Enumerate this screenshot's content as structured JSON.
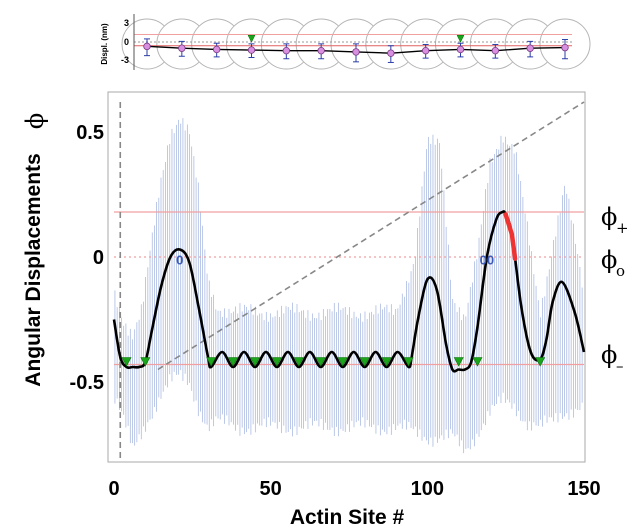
{
  "chart_data": [
    {
      "type": "line",
      "title": "",
      "xlabel": "Actin Site #",
      "ylabel": "Angular Displacements",
      "ylabel_symbol": "ϕ",
      "xlim": [
        0,
        150
      ],
      "ylim": [
        -0.82,
        0.66
      ],
      "x_ticks": [
        0,
        50,
        100,
        150
      ],
      "x_tick_labels": [
        "0",
        "50",
        "100",
        "150"
      ],
      "y_ticks": [
        0.5,
        0,
        -0.5
      ],
      "y_tick_labels": [
        "0.5",
        "0",
        "-0.5"
      ],
      "grid": false,
      "reference_lines": [
        {
          "label_symbol": "ϕ",
          "label_subscript": "+",
          "y": 0.18,
          "style": "solid",
          "color": "#f0a0a0"
        },
        {
          "label_symbol": "ϕ",
          "label_subscript": "o",
          "y": 0.0,
          "style": "dotted",
          "color": "#f0a0a0"
        },
        {
          "label_symbol": "ϕ",
          "label_subscript": "–",
          "y": -0.43,
          "style": "solid",
          "color": "#f0a0a0"
        }
      ],
      "series": [
        {
          "role": "mean angular displacement",
          "color": "#000000",
          "x": [
            0,
            2,
            4,
            6,
            8,
            10,
            12,
            15,
            18,
            21,
            24,
            27,
            30,
            31,
            34.5,
            38,
            41.5,
            45,
            48.5,
            52,
            55.5,
            59,
            62.5,
            66,
            69.5,
            73,
            76.5,
            80,
            83.5,
            87,
            90.5,
            94,
            95,
            97,
            100,
            103,
            106,
            108,
            110,
            112,
            114,
            116,
            119,
            122,
            124,
            125,
            127,
            130,
            133,
            136,
            138,
            140,
            143,
            147,
            150
          ],
          "y": [
            -0.25,
            -0.4,
            -0.44,
            -0.44,
            -0.44,
            -0.42,
            -0.3,
            -0.12,
            0.0,
            0.03,
            -0.02,
            -0.2,
            -0.4,
            -0.44,
            -0.38,
            -0.44,
            -0.38,
            -0.44,
            -0.38,
            -0.44,
            -0.38,
            -0.44,
            -0.38,
            -0.44,
            -0.38,
            -0.44,
            -0.38,
            -0.44,
            -0.38,
            -0.44,
            -0.38,
            -0.44,
            -0.4,
            -0.25,
            -0.09,
            -0.13,
            -0.35,
            -0.45,
            -0.45,
            -0.45,
            -0.42,
            -0.28,
            0.0,
            0.15,
            0.18,
            0.17,
            0.09,
            -0.2,
            -0.38,
            -0.41,
            -0.33,
            -0.18,
            -0.1,
            -0.22,
            -0.38
          ]
        },
        {
          "role": "fluctuation envelope (light blue vertical lines)",
          "color": "#8fa4d8",
          "x": [
            0,
            3,
            6,
            9,
            12,
            15,
            18,
            21,
            24,
            27,
            30,
            33,
            40,
            50,
            60,
            70,
            80,
            90,
            96,
            100,
            104,
            108,
            112,
            116,
            120,
            124,
            128,
            132,
            136,
            140,
            144,
            148,
            150
          ],
          "upper": [
            -0.15,
            -0.25,
            -0.3,
            -0.2,
            0.05,
            0.3,
            0.5,
            0.57,
            0.5,
            0.25,
            -0.1,
            -0.2,
            -0.22,
            -0.22,
            -0.22,
            -0.22,
            -0.22,
            -0.22,
            0.0,
            0.45,
            0.45,
            -0.15,
            -0.25,
            0.0,
            0.38,
            0.5,
            0.42,
            0.1,
            -0.22,
            0.05,
            0.28,
            0.0,
            -0.15
          ],
          "lower": [
            -0.55,
            -0.65,
            -0.78,
            -0.7,
            -0.62,
            -0.55,
            -0.5,
            -0.48,
            -0.5,
            -0.6,
            -0.68,
            -0.66,
            -0.68,
            -0.68,
            -0.68,
            -0.68,
            -0.68,
            -0.68,
            -0.7,
            -0.72,
            -0.72,
            -0.72,
            -0.78,
            -0.7,
            -0.62,
            -0.58,
            -0.6,
            -0.66,
            -0.68,
            -0.66,
            -0.62,
            -0.6,
            -0.6
          ]
        }
      ],
      "markers": [
        {
          "type": "green-triangle",
          "x": [
            4,
            10,
            31,
            38,
            45,
            52,
            59,
            66,
            73,
            80,
            87,
            94,
            110,
            116,
            136
          ],
          "y": -0.43
        }
      ],
      "highlight": {
        "color": "#ee3333",
        "x_from": 125,
        "x_to": 128
      },
      "annotations": [
        {
          "text": "0",
          "x": 21,
          "y": -0.03
        },
        {
          "text": "00",
          "x": 119,
          "y": -0.03
        }
      ],
      "dashed_guides": [
        {
          "x1": 2,
          "y1": 0.62,
          "x2": 2,
          "y2": -0.82
        },
        {
          "x1": 14,
          "y1": -0.45,
          "x2": 150,
          "y2": 0.62
        }
      ]
    },
    {
      "type": "line",
      "title": "",
      "ylabel": "Displ. (nm)",
      "ylim": [
        -3.6,
        3.6
      ],
      "y_ticks": [
        3,
        0,
        -3
      ],
      "y_tick_labels": [
        "3",
        "0",
        "-3"
      ],
      "grid": false,
      "sites": [
        1,
        2,
        3,
        4,
        5,
        6,
        7,
        8,
        9,
        10,
        11,
        12,
        13
      ],
      "values": [
        -0.7,
        -1.0,
        -1.2,
        -1.3,
        -1.4,
        -1.4,
        -1.6,
        -1.8,
        -1.4,
        -1.2,
        -1.4,
        -1.0,
        -0.9
      ],
      "error_high": [
        1.2,
        1.1,
        1.0,
        1.0,
        1.1,
        1.1,
        1.3,
        1.2,
        1.0,
        1.0,
        1.0,
        1.1,
        1.3
      ],
      "error_low": [
        1.5,
        1.3,
        1.2,
        1.2,
        1.3,
        1.3,
        1.6,
        1.5,
        1.2,
        1.2,
        1.2,
        1.4,
        1.8
      ],
      "green_marker_sites": [
        4,
        10
      ],
      "reference_lines": [
        {
          "y": 1.2,
          "style": "solid",
          "color": "#f0a0a0"
        },
        {
          "y": 0.0,
          "style": "dashed",
          "color": "#999999"
        },
        {
          "y": -0.6,
          "style": "solid",
          "color": "#e06060"
        }
      ]
    }
  ]
}
